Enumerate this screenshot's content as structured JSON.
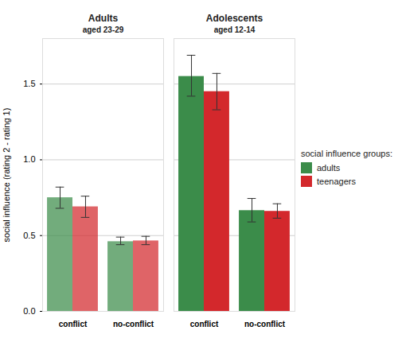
{
  "chart_data": {
    "type": "bar",
    "ylabel": "social influence (rating 2 - rating 1)",
    "categories": [
      "conflict",
      "no-conflict"
    ],
    "legend_title": "social influence groups:",
    "legend": "right",
    "grid": true,
    "ylim": [
      0,
      1.8
    ],
    "yticks": [
      {
        "value": 0,
        "label": "0.0"
      },
      {
        "value": 0.5,
        "label": "0.5"
      },
      {
        "value": 1,
        "label": "1.0"
      },
      {
        "value": 1.5,
        "label": "1.5"
      }
    ],
    "facets": [
      {
        "title": "Adults",
        "subtitle": "aged 23-29",
        "series": [
          {
            "name": "adults",
            "color": "#3b8c4a",
            "values": [
              0.75,
              0.46
            ],
            "error_low": [
              0.68,
              0.44
            ],
            "error_high": [
              0.82,
              0.49
            ]
          },
          {
            "name": "teenagers",
            "color": "#d3282c",
            "values": [
              0.69,
              0.465
            ],
            "error_low": [
              0.62,
              0.44
            ],
            "error_high": [
              0.76,
              0.495
            ]
          }
        ]
      },
      {
        "title": "Adolescents",
        "subtitle": "aged 12-14",
        "series": [
          {
            "name": "adults",
            "color": "#3b8c4a",
            "values": [
              1.55,
              0.665
            ],
            "error_low": [
              1.42,
              0.59
            ],
            "error_high": [
              1.69,
              0.745
            ]
          },
          {
            "name": "teenagers",
            "color": "#d3282c",
            "values": [
              1.45,
              0.66
            ],
            "error_low": [
              1.33,
              0.615
            ],
            "error_high": [
              1.57,
              0.71
            ]
          }
        ]
      }
    ]
  }
}
